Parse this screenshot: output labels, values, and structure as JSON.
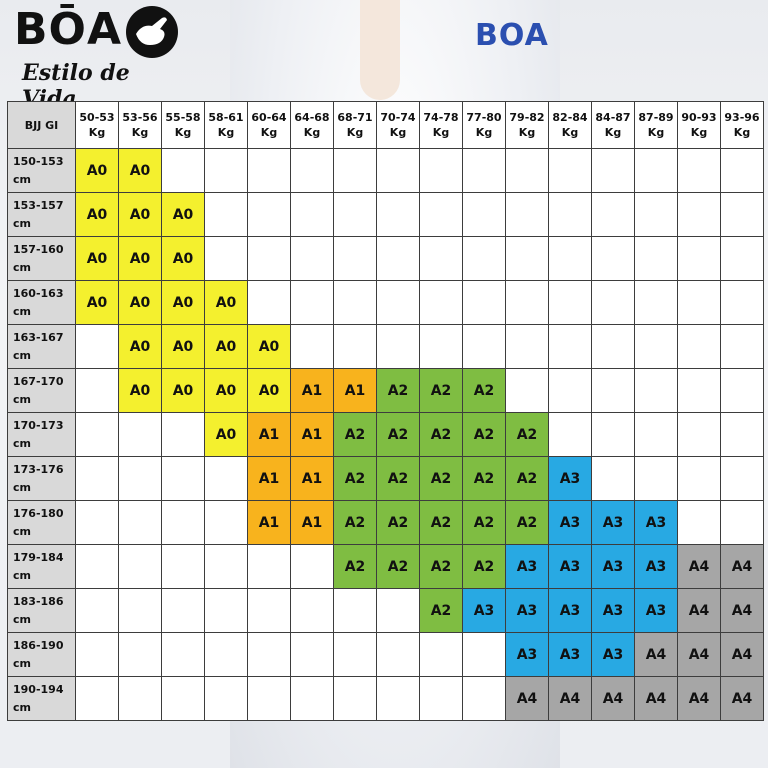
{
  "brand": {
    "name": "BŌA",
    "tagline": "Estilo de Vida",
    "gi_patch": "BOA"
  },
  "colors": {
    "A0": "#f4f02e",
    "A1": "#f8b31d",
    "A2": "#7fbd42",
    "A3": "#28a9e3",
    "A4": "#a6a6a6",
    "header": "#d9d9d9"
  },
  "table": {
    "corner": "BJJ GI",
    "weight_unit": "Kg",
    "height_unit": "cm",
    "weights": [
      "50-53",
      "53-56",
      "55-58",
      "58-61",
      "60-64",
      "64-68",
      "68-71",
      "70-74",
      "74-78",
      "77-80",
      "79-82",
      "82-84",
      "84-87",
      "87-89",
      "90-93",
      "93-96"
    ],
    "heights": [
      "150-153",
      "153-157",
      "157-160",
      "160-163",
      "163-167",
      "167-170",
      "170-173",
      "173-176",
      "176-180",
      "179-184",
      "183-186",
      "186-190",
      "190-194"
    ],
    "cells": [
      [
        "A0",
        "A0",
        "",
        "",
        "",
        "",
        "",
        "",
        "",
        "",
        "",
        "",
        "",
        "",
        "",
        ""
      ],
      [
        "A0",
        "A0",
        "A0",
        "",
        "",
        "",
        "",
        "",
        "",
        "",
        "",
        "",
        "",
        "",
        "",
        ""
      ],
      [
        "A0",
        "A0",
        "A0",
        "",
        "",
        "",
        "",
        "",
        "",
        "",
        "",
        "",
        "",
        "",
        "",
        ""
      ],
      [
        "A0",
        "A0",
        "A0",
        "A0",
        "",
        "",
        "",
        "",
        "",
        "",
        "",
        "",
        "",
        "",
        "",
        ""
      ],
      [
        "",
        "A0",
        "A0",
        "A0",
        "A0",
        "",
        "",
        "",
        "",
        "",
        "",
        "",
        "",
        "",
        "",
        ""
      ],
      [
        "",
        "A0",
        "A0",
        "A0",
        "A0",
        "A1",
        "A1",
        "A2",
        "A2",
        "A2",
        "",
        "",
        "",
        "",
        "",
        ""
      ],
      [
        "",
        "",
        "",
        "A0",
        "A1",
        "A1",
        "A2",
        "A2",
        "A2",
        "A2",
        "A2",
        "",
        "",
        "",
        "",
        ""
      ],
      [
        "",
        "",
        "",
        "",
        "A1",
        "A1",
        "A2",
        "A2",
        "A2",
        "A2",
        "A2",
        "A3",
        "",
        "",
        "",
        ""
      ],
      [
        "",
        "",
        "",
        "",
        "A1",
        "A1",
        "A2",
        "A2",
        "A2",
        "A2",
        "A2",
        "A3",
        "A3",
        "A3",
        "",
        ""
      ],
      [
        "",
        "",
        "",
        "",
        "",
        "",
        "A2",
        "A2",
        "A2",
        "A2",
        "A3",
        "A3",
        "A3",
        "A3",
        "A4",
        "A4"
      ],
      [
        "",
        "",
        "",
        "",
        "",
        "",
        "",
        "",
        "A2",
        "A3",
        "A3",
        "A3",
        "A3",
        "A3",
        "A4",
        "A4"
      ],
      [
        "",
        "",
        "",
        "",
        "",
        "",
        "",
        "",
        "",
        "",
        "A3",
        "A3",
        "A3",
        "A4",
        "A4",
        "A4"
      ],
      [
        "",
        "",
        "",
        "",
        "",
        "",
        "",
        "",
        "",
        "",
        "A4",
        "A4",
        "A4",
        "A4",
        "A4",
        "A4"
      ]
    ]
  }
}
